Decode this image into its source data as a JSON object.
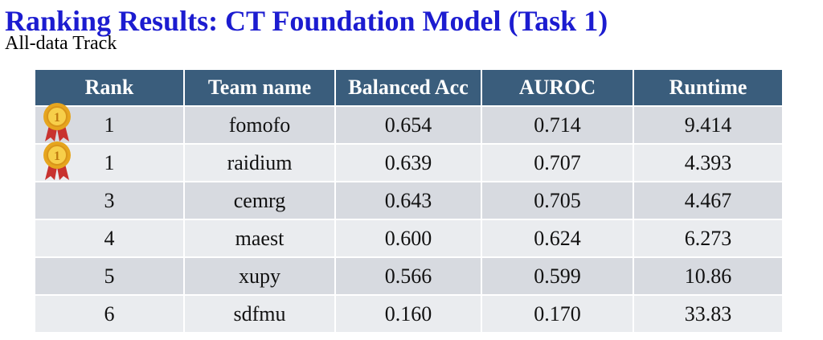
{
  "header": {
    "title": "Ranking Results: CT Foundation Model (Task 1)",
    "subtitle": "All-data Track"
  },
  "table": {
    "columns": [
      "Rank",
      "Team name",
      "Balanced Acc",
      "AUROC",
      "Runtime"
    ],
    "rows": [
      [
        "1",
        "fomofo",
        "0.654",
        "0.714",
        "9.414"
      ],
      [
        "1",
        "raidium",
        "0.639",
        "0.707",
        "4.393"
      ],
      [
        "3",
        "cemrg",
        "0.643",
        "0.705",
        "4.467"
      ],
      [
        "4",
        "maest",
        "0.600",
        "0.624",
        "6.273"
      ],
      [
        "5",
        "xupy",
        "0.566",
        "0.599",
        "10.86"
      ],
      [
        "6",
        "sdfmu",
        "0.160",
        "0.170",
        "33.83"
      ]
    ]
  }
}
